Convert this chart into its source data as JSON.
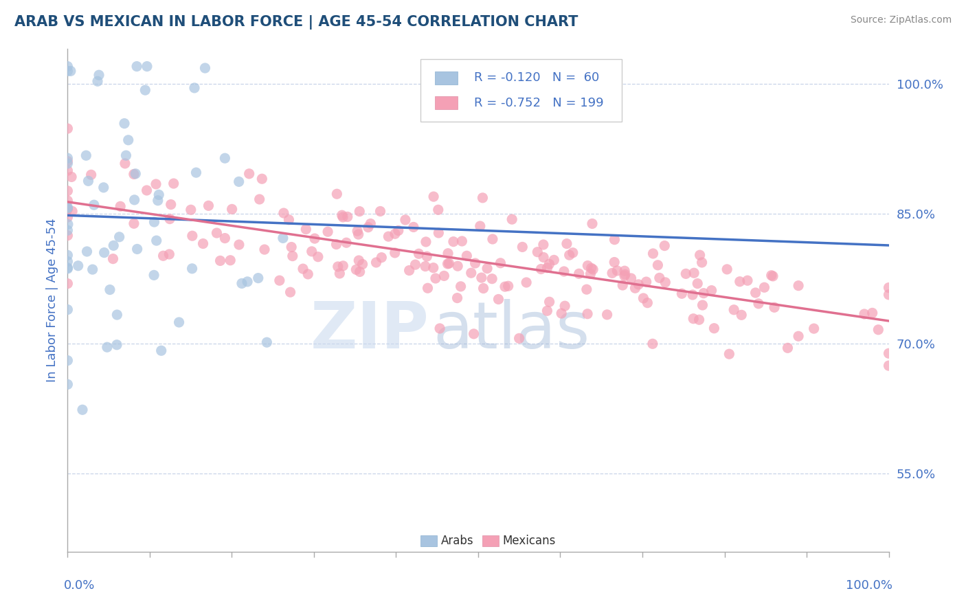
{
  "title": "ARAB VS MEXICAN IN LABOR FORCE | AGE 45-54 CORRELATION CHART",
  "source_text": "Source: ZipAtlas.com",
  "ylabel": "In Labor Force | Age 45-54",
  "right_ytick_values": [
    0.55,
    0.7,
    0.85,
    1.0
  ],
  "right_ytick_labels": [
    "55.0%",
    "70.0%",
    "85.0%",
    "100.0%"
  ],
  "arab_R": -0.12,
  "arab_N": 60,
  "mexican_R": -0.752,
  "mexican_N": 199,
  "arab_color": "#a8c4e0",
  "mexican_color": "#f4a0b5",
  "arab_line_color": "#4472c4",
  "mexican_line_color": "#e07090",
  "background_color": "#ffffff",
  "watermark_zip": "ZIP",
  "watermark_atlas": "atlas",
  "title_color": "#1f4e79",
  "axis_label_color": "#4472c4",
  "legend_R_color": "#4472c4",
  "ylim_low": 0.46,
  "ylim_high": 1.04,
  "seed": 7
}
